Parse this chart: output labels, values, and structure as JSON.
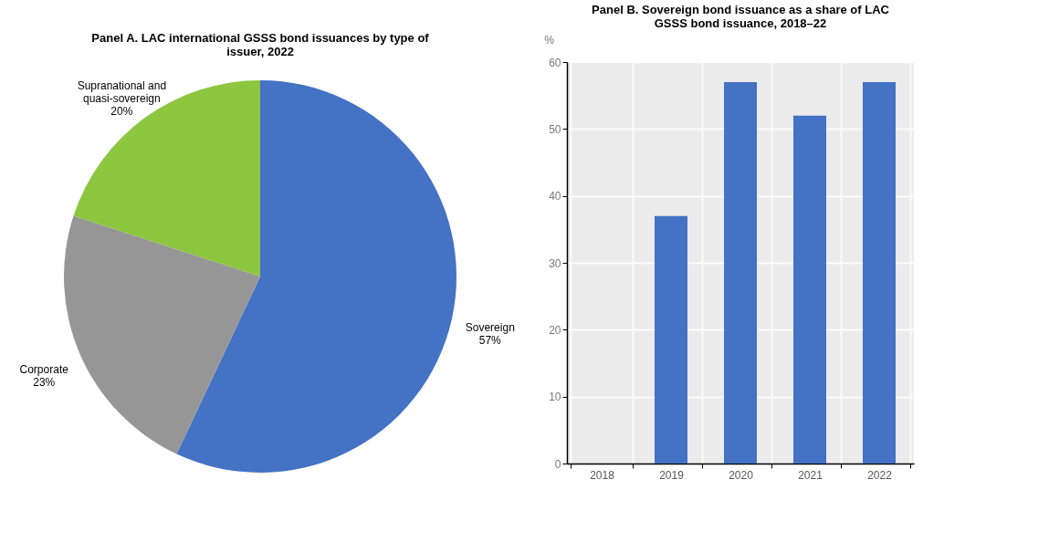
{
  "chart_data": [
    {
      "type": "pie",
      "title": "Panel A. LAC international GSSS bond issuances by type of issuer, 2022",
      "categories": [
        "Sovereign",
        "Corporate",
        "Supranational and quasi-sovereign"
      ],
      "values": [
        57,
        23,
        20
      ],
      "colors": [
        "#4472c4",
        "#969696",
        "#8dc63f"
      ],
      "value_labels": [
        "57%",
        "23%",
        "20%"
      ]
    },
    {
      "type": "bar",
      "title": "Panel B. Sovereign bond issuance as a share of LAC GSSS bond issuance, 2018–22",
      "ylabel": "%",
      "categories": [
        "2018",
        "2019",
        "2020",
        "2021",
        "2022"
      ],
      "series": [
        {
          "color": "#4472c4",
          "values": [
            null,
            37,
            57,
            52,
            57
          ]
        }
      ],
      "ylim": [
        0,
        60
      ],
      "yticks": [
        0,
        10,
        20,
        30,
        40,
        50,
        60
      ],
      "grid": true
    }
  ]
}
